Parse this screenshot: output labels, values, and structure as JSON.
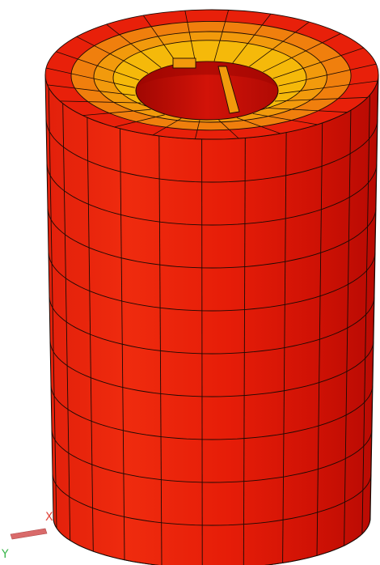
{
  "viewport": {
    "background": "#ffffff",
    "model": {
      "colors": {
        "body_light": "#ee2a0d",
        "body_mid": "#e01807",
        "body_dark": "#c80e04",
        "body_shadow": "#b00903",
        "ring_red": "#e8200a",
        "ring_orange": "#f07f0d",
        "ring_yellow": "#f5b90a",
        "ring_amber": "#f29a0c",
        "bore": "#c40e06",
        "bore_dark": "#9c0602",
        "mesh_lines": "#1a0a05"
      },
      "side_rows": 10,
      "side_columns": 24,
      "top_rings": 4,
      "top_segments": 24
    },
    "triad": {
      "x_label": "X",
      "y_label": "Y",
      "x_color": "#e0463c",
      "y_color": "#39b54a",
      "axis_color": "#d96a6a"
    }
  }
}
